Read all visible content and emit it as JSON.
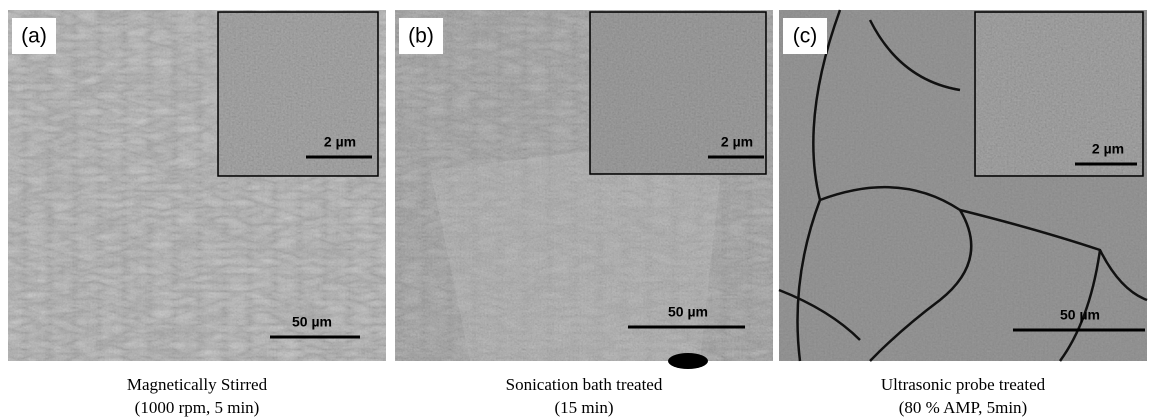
{
  "panels": [
    {
      "label": "(a)",
      "scale_bar": "50 µm",
      "inset_scale_bar": "2 µm",
      "caption": [
        "Magnetically Stirred",
        "(1000 rpm, 5 min)"
      ]
    },
    {
      "label": "(b)",
      "scale_bar": "50 µm",
      "inset_scale_bar": "2 µm",
      "caption": [
        "Sonication bath treated",
        "(15 min)"
      ]
    },
    {
      "label": "(c)",
      "scale_bar": "50 µm",
      "inset_scale_bar": "2 µm",
      "caption": [
        "Ultrasonic probe treated",
        "(80 % AMP, 5min)"
      ]
    }
  ]
}
